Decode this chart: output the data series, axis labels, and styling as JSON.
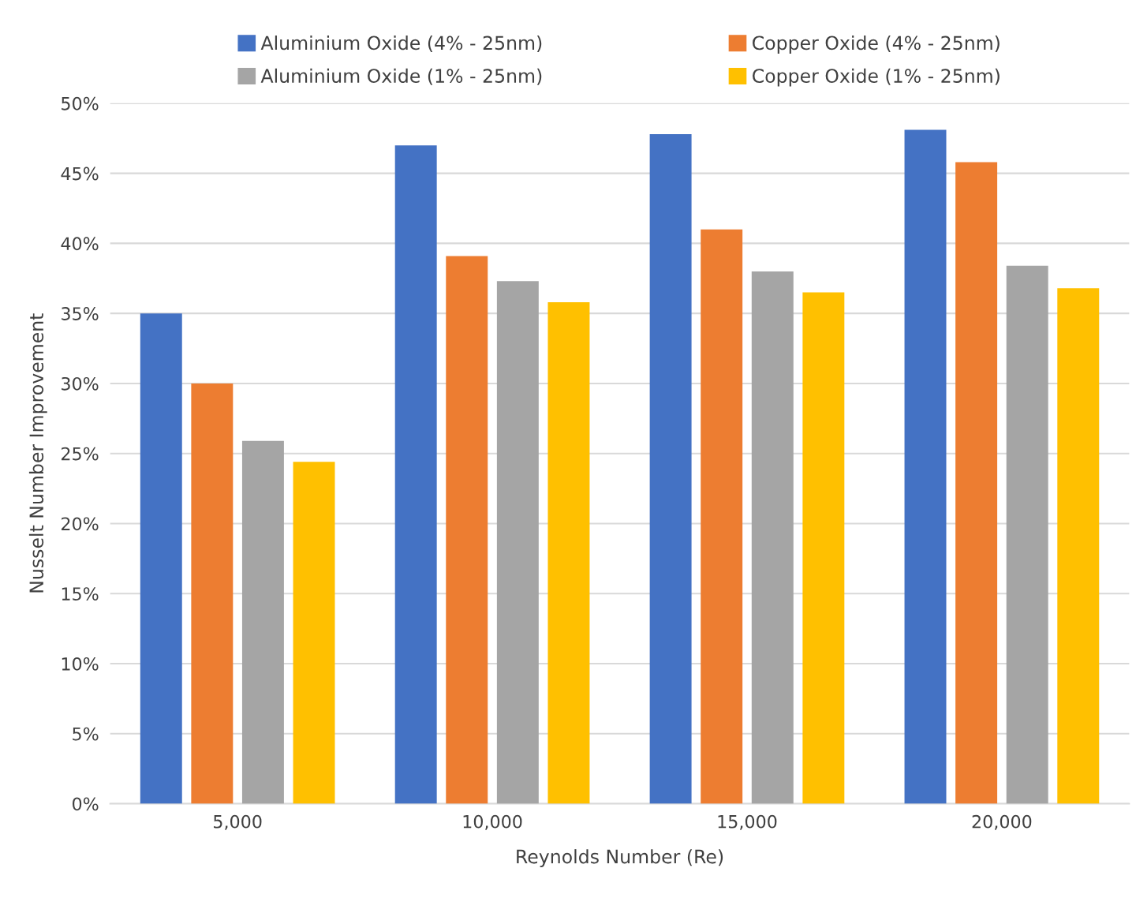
{
  "chart_data": {
    "type": "bar",
    "xlabel": "Reynolds Number (Re)",
    "ylabel": "Nusselt Number Improvement",
    "categories": [
      "5,000",
      "10,000",
      "15,000",
      "20,000"
    ],
    "series": [
      {
        "name": "Aluminium Oxide (4% - 25nm)",
        "color": "#4472c4",
        "values": [
          35.0,
          47.0,
          47.8,
          48.1
        ]
      },
      {
        "name": "Copper Oxide (4% - 25nm)",
        "color": "#ed7d31",
        "values": [
          30.0,
          39.1,
          41.0,
          45.8
        ]
      },
      {
        "name": "Aluminium Oxide (1% - 25nm)",
        "color": "#a5a5a5",
        "values": [
          25.9,
          37.3,
          38.0,
          38.4
        ]
      },
      {
        "name": "Copper Oxide (1% - 25nm)",
        "color": "#ffc000",
        "values": [
          24.4,
          35.8,
          36.5,
          36.8
        ]
      }
    ],
    "ylim": [
      0,
      50
    ],
    "yticks": [
      {
        "value": 0,
        "label": "0%"
      },
      {
        "value": 5,
        "label": "5%"
      },
      {
        "value": 10,
        "label": "10%"
      },
      {
        "value": 15,
        "label": "15%"
      },
      {
        "value": 20,
        "label": "20%"
      },
      {
        "value": 25,
        "label": "25%"
      },
      {
        "value": 30,
        "label": "30%"
      },
      {
        "value": 35,
        "label": "35%"
      },
      {
        "value": 40,
        "label": "40%"
      },
      {
        "value": 45,
        "label": "45%"
      },
      {
        "value": 50,
        "label": "50%"
      }
    ],
    "grid": "y",
    "legend": "top"
  }
}
